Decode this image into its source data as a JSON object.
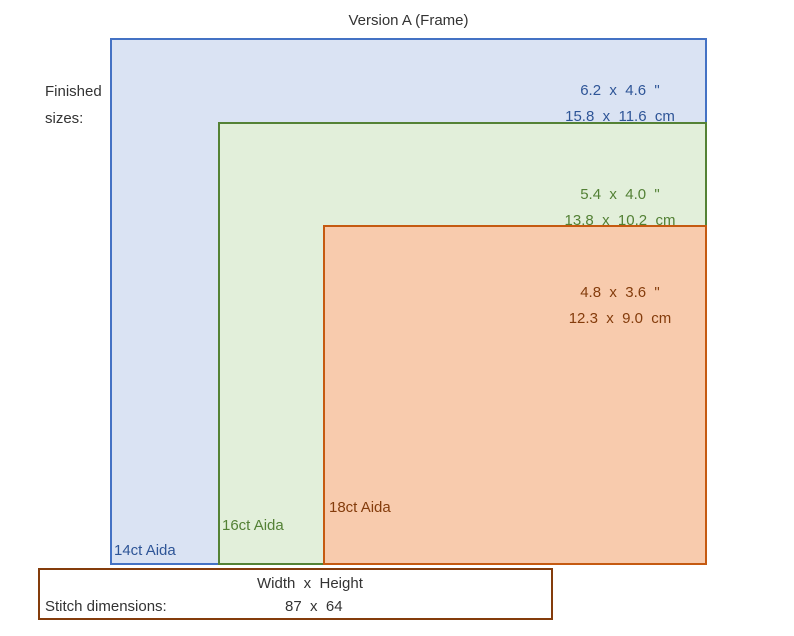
{
  "title": "Version A (Frame)",
  "finished_label": {
    "line1": "Finished",
    "line2": "sizes:"
  },
  "fabrics": [
    {
      "name": "14ct Aida",
      "inches": "6.2  x  4.6  \"",
      "cm": "15.8  x  11.6  cm",
      "fill_color": "#dae3f3",
      "border_color": "#4472c4",
      "text_color": "#2e5597"
    },
    {
      "name": "16ct Aida",
      "inches": "5.4  x  4.0  \"",
      "cm": "13.8  x  10.2  cm",
      "fill_color": "#e2efda",
      "border_color": "#548235",
      "text_color": "#538135"
    },
    {
      "name": "18ct Aida",
      "inches": "4.8  x  3.6  \"",
      "cm": "12.3  x  9.0  cm",
      "fill_color": "#f8cbad",
      "border_color": "#c55a11",
      "text_color": "#843c0c"
    }
  ],
  "stitch_box": {
    "header": "Width  x  Height",
    "label": "Stitch dimensions:",
    "value": "87  x  64",
    "border_color": "#843c0c"
  }
}
